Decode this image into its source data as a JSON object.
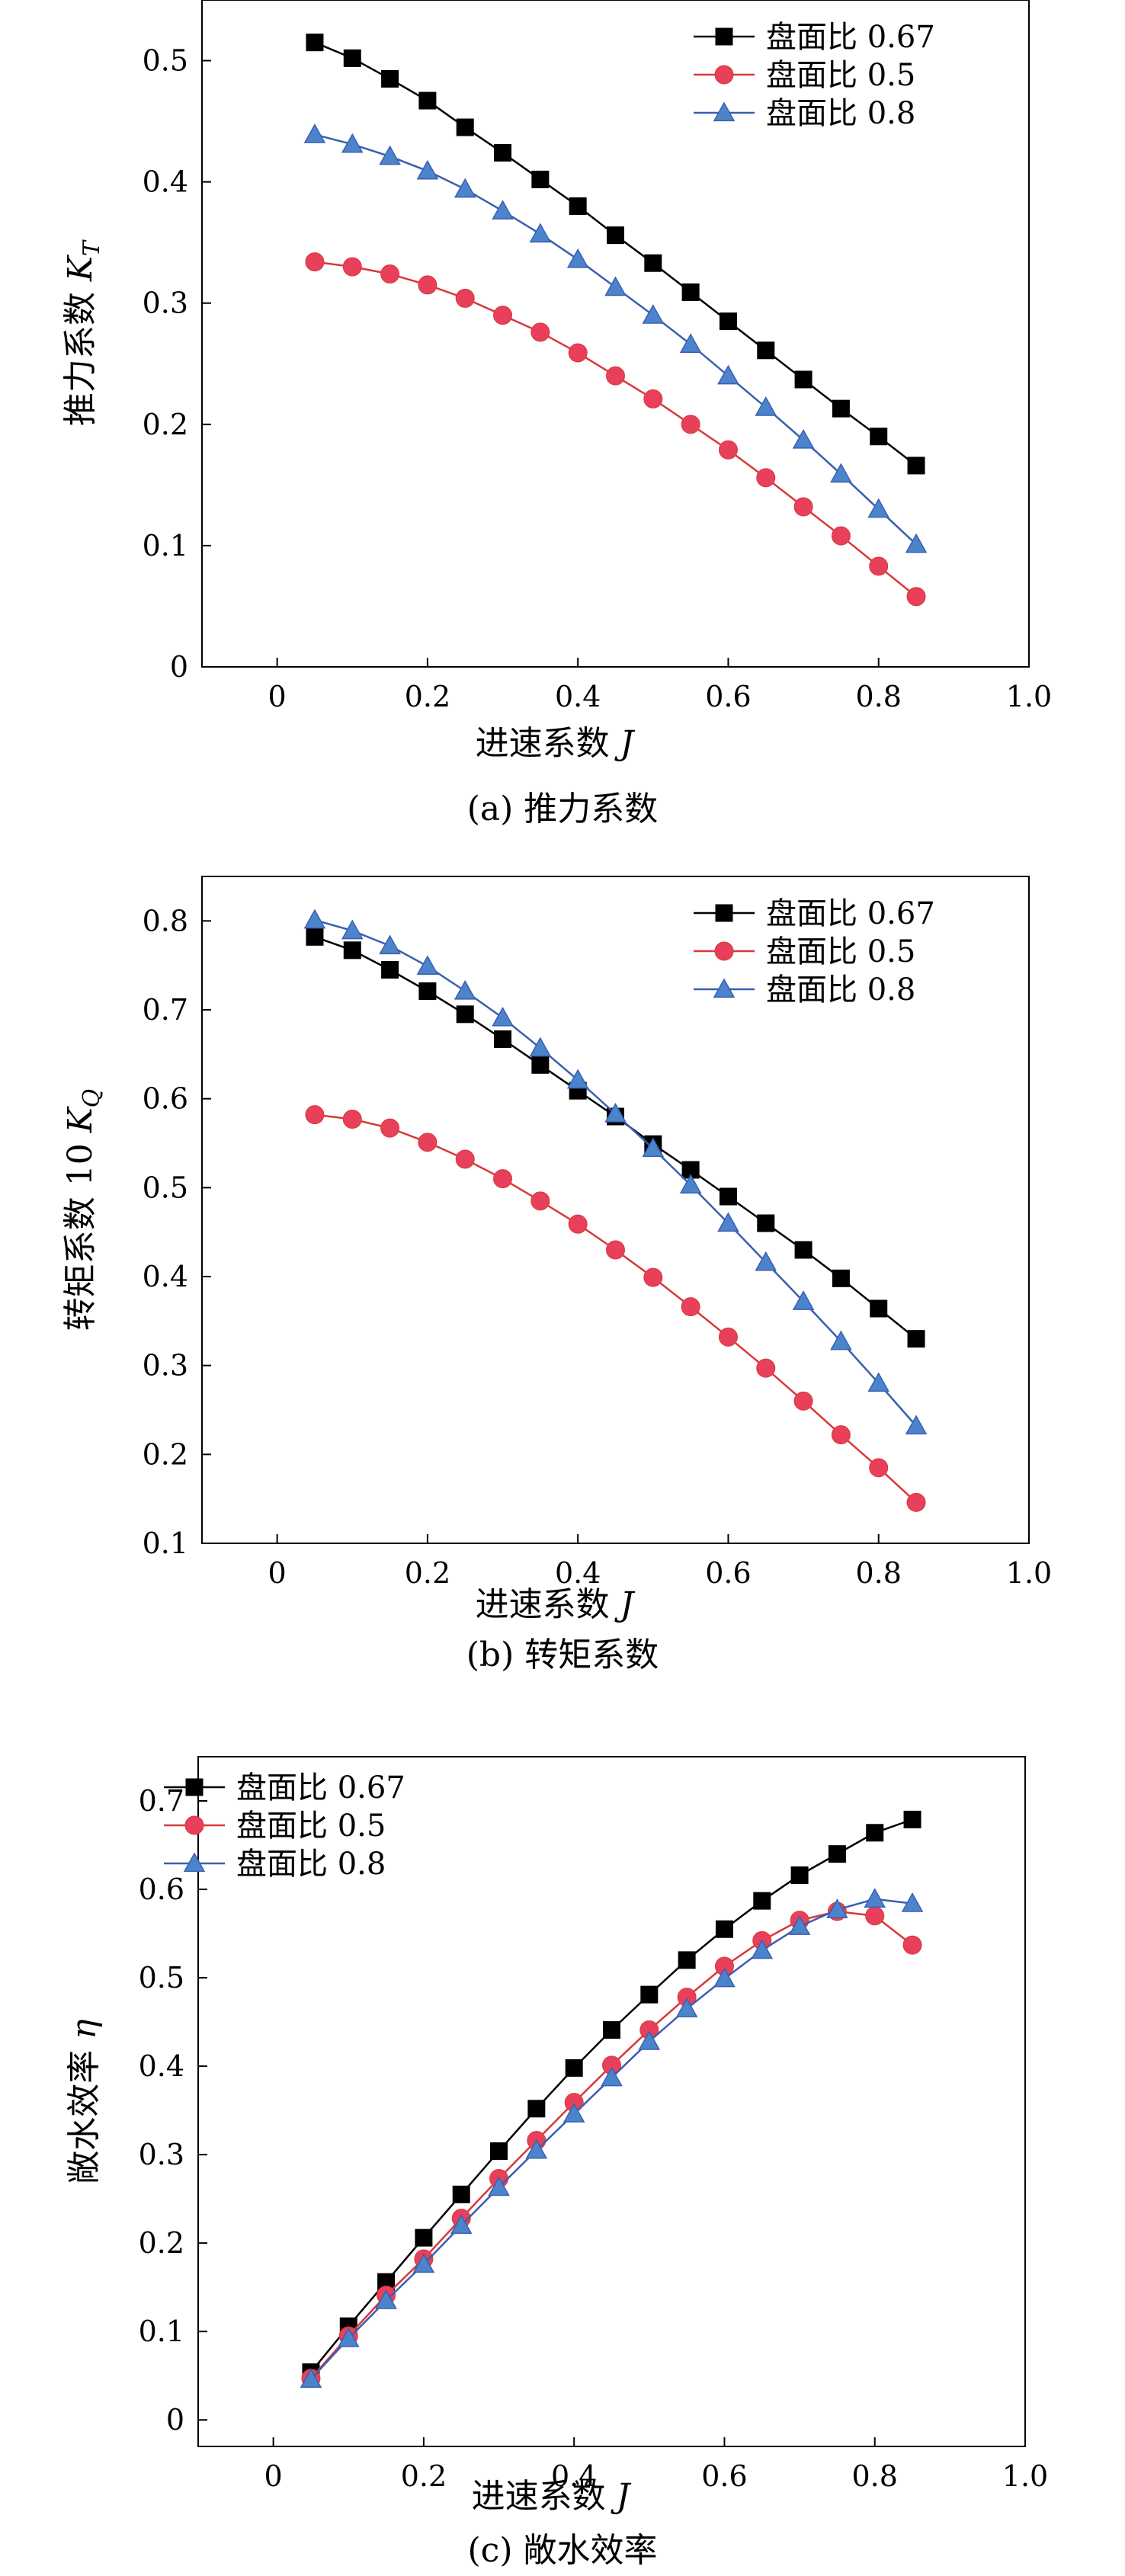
{
  "series_styles": [
    {
      "marker": "square",
      "color": "#000000",
      "fill": "#000000"
    },
    {
      "marker": "circle",
      "color": "#d9383a",
      "fill": "#e8405a"
    },
    {
      "marker": "triangle",
      "color": "#3a5fb0",
      "fill": "#4c84cc"
    }
  ],
  "chart_data": [
    {
      "type": "line",
      "caption": "(a) 推力系数",
      "xlabel": "进速系数 J",
      "ylabel": "推力系数 K_T",
      "xlim": [
        -0.1,
        1.0
      ],
      "ylim": [
        0,
        0.55
      ],
      "xticks": [
        "0",
        "0.2",
        "0.4",
        "0.6",
        "0.8",
        "1.0"
      ],
      "xtick_values": [
        0,
        0.2,
        0.4,
        0.6,
        0.8,
        1.0
      ],
      "yticks": [
        "0",
        "0.1",
        "0.2",
        "0.3",
        "0.4",
        "0.5"
      ],
      "ytick_values": [
        0,
        0.1,
        0.2,
        0.3,
        0.4,
        0.5
      ],
      "legend_position": "top-right",
      "x": [
        0.05,
        0.1,
        0.15,
        0.2,
        0.25,
        0.3,
        0.35,
        0.4,
        0.45,
        0.5,
        0.55,
        0.6,
        0.65,
        0.7,
        0.75,
        0.8,
        0.85
      ],
      "series": [
        {
          "name": "盘面比 0.67",
          "values": [
            0.515,
            0.502,
            0.485,
            0.467,
            0.445,
            0.424,
            0.402,
            0.38,
            0.356,
            0.333,
            0.309,
            0.285,
            0.261,
            0.237,
            0.213,
            0.19,
            0.166
          ]
        },
        {
          "name": "盘面比 0.5",
          "values": [
            0.334,
            0.33,
            0.324,
            0.315,
            0.304,
            0.29,
            0.276,
            0.259,
            0.24,
            0.221,
            0.2,
            0.179,
            0.156,
            0.132,
            0.108,
            0.083,
            0.058
          ]
        },
        {
          "name": "盘面比 0.8",
          "values": [
            0.439,
            0.431,
            0.421,
            0.409,
            0.394,
            0.376,
            0.357,
            0.336,
            0.313,
            0.29,
            0.266,
            0.24,
            0.214,
            0.187,
            0.159,
            0.13,
            0.101
          ]
        }
      ]
    },
    {
      "type": "line",
      "caption": "(b) 转矩系数",
      "xlabel": "进速系数 J",
      "ylabel": "转矩系数 10 K_Q",
      "xlim": [
        -0.1,
        1.0
      ],
      "ylim": [
        0.1,
        0.85
      ],
      "xticks": [
        "0",
        "0.2",
        "0.4",
        "0.6",
        "0.8",
        "1.0"
      ],
      "xtick_values": [
        0,
        0.2,
        0.4,
        0.6,
        0.8,
        1.0
      ],
      "yticks": [
        "0.1",
        "0.2",
        "0.3",
        "0.4",
        "0.5",
        "0.6",
        "0.7",
        "0.8"
      ],
      "ytick_values": [
        0.1,
        0.2,
        0.3,
        0.4,
        0.5,
        0.6,
        0.7,
        0.8
      ],
      "legend_position": "top-right",
      "x": [
        0.05,
        0.1,
        0.15,
        0.2,
        0.25,
        0.3,
        0.35,
        0.4,
        0.45,
        0.5,
        0.55,
        0.6,
        0.65,
        0.7,
        0.75,
        0.8,
        0.85
      ],
      "series": [
        {
          "name": "盘面比 0.67",
          "values": [
            0.782,
            0.767,
            0.745,
            0.721,
            0.695,
            0.667,
            0.638,
            0.609,
            0.58,
            0.549,
            0.52,
            0.49,
            0.46,
            0.43,
            0.398,
            0.364,
            0.33
          ]
        },
        {
          "name": "盘面比 0.5",
          "values": [
            0.582,
            0.577,
            0.567,
            0.551,
            0.532,
            0.51,
            0.485,
            0.459,
            0.43,
            0.399,
            0.366,
            0.332,
            0.297,
            0.26,
            0.222,
            0.185,
            0.146
          ]
        },
        {
          "name": "盘面比 0.8",
          "values": [
            0.801,
            0.789,
            0.772,
            0.749,
            0.721,
            0.691,
            0.657,
            0.621,
            0.583,
            0.544,
            0.503,
            0.46,
            0.416,
            0.372,
            0.327,
            0.28,
            0.232
          ]
        }
      ]
    },
    {
      "type": "line",
      "caption": "(c) 敞水效率",
      "xlabel": "进速系数 J",
      "ylabel": "敞水效率 η",
      "xlim": [
        -0.1,
        1.0
      ],
      "ylim": [
        -0.03,
        0.75
      ],
      "xticks": [
        "0",
        "0.2",
        "0.4",
        "0.6",
        "0.8",
        "1.0"
      ],
      "xtick_values": [
        0,
        0.2,
        0.4,
        0.6,
        0.8,
        1.0
      ],
      "yticks": [
        "0",
        "0.1",
        "0.2",
        "0.3",
        "0.4",
        "0.5",
        "0.6",
        "0.7"
      ],
      "ytick_values": [
        0,
        0.1,
        0.2,
        0.3,
        0.4,
        0.5,
        0.6,
        0.7
      ],
      "legend_position": "top-left",
      "x": [
        0.05,
        0.1,
        0.15,
        0.2,
        0.25,
        0.3,
        0.35,
        0.4,
        0.45,
        0.5,
        0.55,
        0.6,
        0.65,
        0.7,
        0.75,
        0.8,
        0.85
      ],
      "series": [
        {
          "name": "盘面比 0.67",
          "values": [
            0.054,
            0.106,
            0.156,
            0.206,
            0.255,
            0.304,
            0.352,
            0.398,
            0.441,
            0.481,
            0.52,
            0.555,
            0.587,
            0.616,
            0.64,
            0.664,
            0.679
          ]
        },
        {
          "name": "盘面比 0.5",
          "values": [
            0.047,
            0.095,
            0.141,
            0.182,
            0.228,
            0.273,
            0.316,
            0.359,
            0.401,
            0.441,
            0.478,
            0.513,
            0.542,
            0.565,
            0.575,
            0.57,
            0.537
          ]
        },
        {
          "name": "盘面比 0.8",
          "values": [
            0.046,
            0.092,
            0.135,
            0.176,
            0.22,
            0.263,
            0.305,
            0.346,
            0.387,
            0.428,
            0.465,
            0.499,
            0.531,
            0.558,
            0.577,
            0.589,
            0.584
          ]
        }
      ]
    }
  ]
}
